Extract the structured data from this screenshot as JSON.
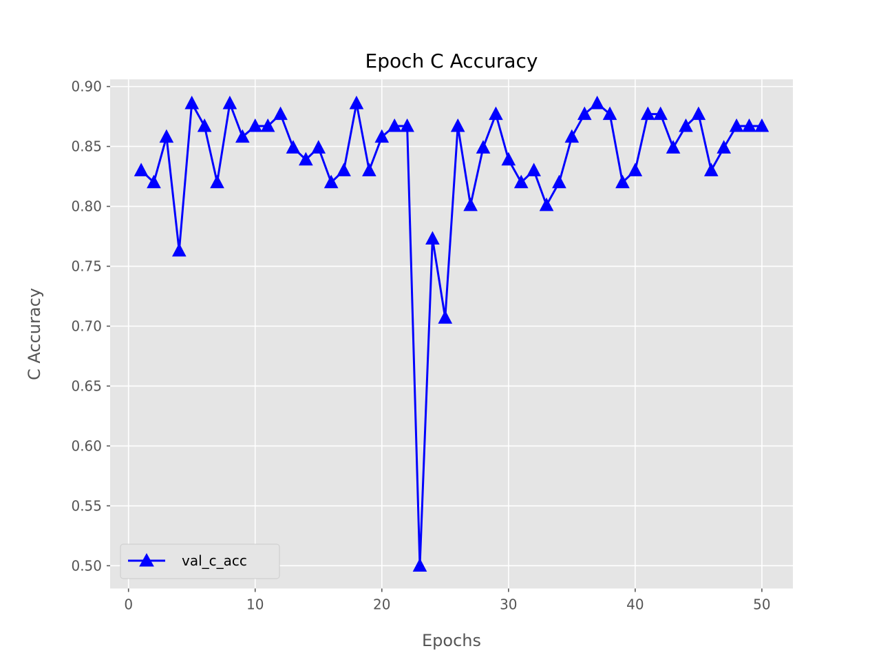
{
  "chart_data": {
    "type": "line",
    "title": "Epoch C Accuracy",
    "xlabel": "Epochs",
    "ylabel": "C Accuracy",
    "xlim": [
      -1.45,
      52.45
    ],
    "ylim": [
      0.481,
      0.906
    ],
    "xticks": [
      0,
      10,
      20,
      30,
      40,
      50
    ],
    "xtick_labels": [
      "0",
      "10",
      "20",
      "30",
      "40",
      "50"
    ],
    "yticks": [
      0.5,
      0.55,
      0.6,
      0.65,
      0.7,
      0.75,
      0.8,
      0.85,
      0.9
    ],
    "ytick_labels": [
      "0.50",
      "0.55",
      "0.60",
      "0.65",
      "0.70",
      "0.75",
      "0.80",
      "0.85",
      "0.90"
    ],
    "grid": true,
    "legend_position": "lower-left",
    "marker": "triangle",
    "series": [
      {
        "name": "val_c_acc",
        "color": "#0000ff",
        "x": [
          1,
          2,
          3,
          4,
          5,
          6,
          7,
          8,
          9,
          10,
          11,
          12,
          13,
          14,
          15,
          16,
          17,
          18,
          19,
          20,
          21,
          22,
          23,
          24,
          25,
          26,
          27,
          28,
          29,
          30,
          31,
          32,
          33,
          34,
          35,
          36,
          37,
          38,
          39,
          40,
          41,
          42,
          43,
          44,
          45,
          46,
          47,
          48,
          49,
          50
        ],
        "y": [
          0.83,
          0.82,
          0.858,
          0.763,
          0.886,
          0.867,
          0.82,
          0.886,
          0.858,
          0.867,
          0.867,
          0.877,
          0.849,
          0.839,
          0.849,
          0.82,
          0.83,
          0.886,
          0.83,
          0.858,
          0.867,
          0.867,
          0.5,
          0.773,
          0.707,
          0.867,
          0.801,
          0.849,
          0.877,
          0.839,
          0.82,
          0.83,
          0.801,
          0.82,
          0.858,
          0.877,
          0.886,
          0.877,
          0.82,
          0.83,
          0.877,
          0.877,
          0.849,
          0.867,
          0.877,
          0.83,
          0.849,
          0.867,
          0.867,
          0.867
        ]
      }
    ]
  }
}
